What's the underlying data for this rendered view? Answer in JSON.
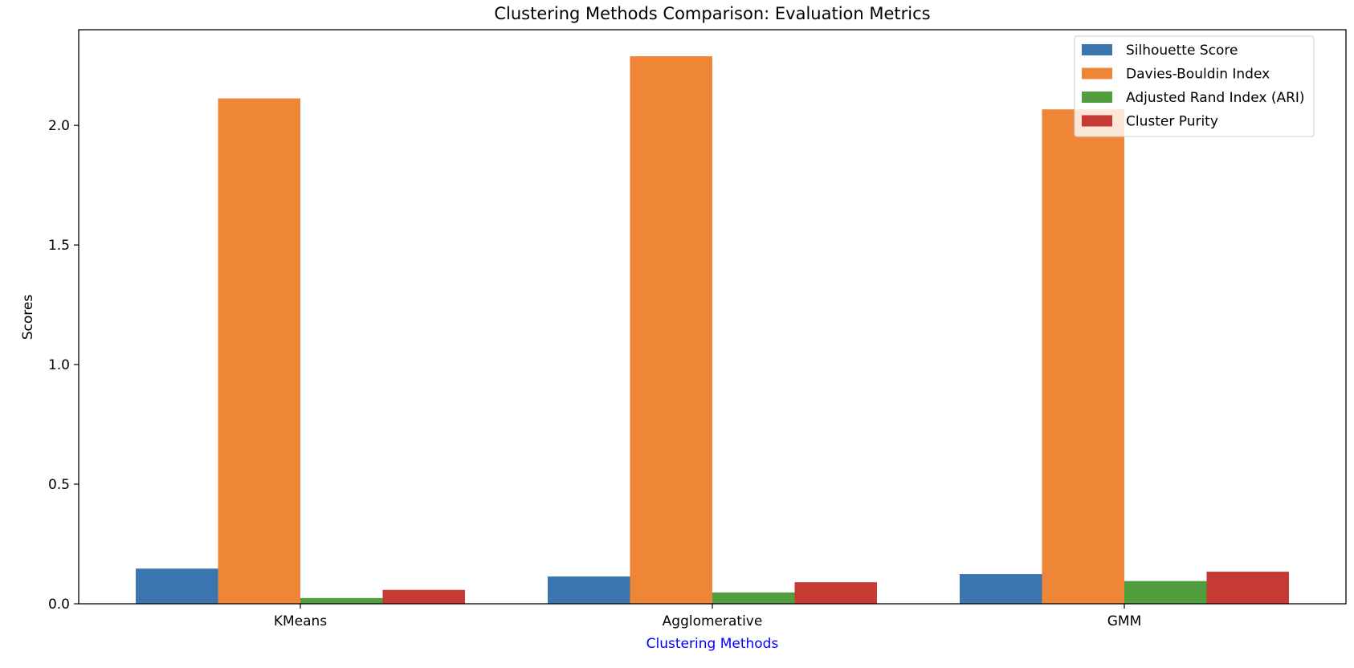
{
  "chart_data": {
    "type": "bar",
    "title": "Clustering Methods Comparison: Evaluation Metrics",
    "xlabel": "Clustering Methods",
    "ylabel": "Scores",
    "categories": [
      "KMeans",
      "Agglomerative",
      "GMM"
    ],
    "series": [
      {
        "name": "Silhouette Score",
        "color": "#3a75af",
        "values": [
          0.147,
          0.114,
          0.124
        ]
      },
      {
        "name": "Davies-Bouldin Index",
        "color": "#ef8536",
        "values": [
          2.113,
          2.289,
          2.067
        ]
      },
      {
        "name": "Adjusted Rand Index (ARI)",
        "color": "#519e3e",
        "values": [
          0.024,
          0.047,
          0.095
        ]
      },
      {
        "name": "Cluster Purity",
        "color": "#c53a32",
        "values": [
          0.058,
          0.09,
          0.134
        ]
      }
    ],
    "ylim": [
      0,
      2.4
    ],
    "yticks": [
      0.0,
      0.5,
      1.0,
      1.5,
      2.0
    ],
    "ytick_labels": [
      "0.0",
      "0.5",
      "1.0",
      "1.5",
      "2.0"
    ],
    "grid": false,
    "legend_position": "top-right",
    "xlabel_color": "#0000ff"
  }
}
